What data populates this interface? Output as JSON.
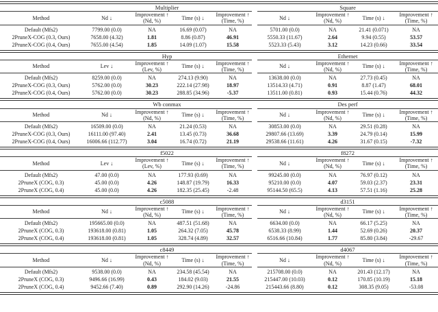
{
  "colors": {
    "background": "#ffffff",
    "text": "#1b1b1b",
    "rule": "#2e2e2e"
  },
  "bands": [
    {
      "method_header": "Method",
      "methods": [
        "Default (Mfs2)",
        "2PruneX-COG (0.3, Ours)",
        "2PruneX-COG (0.4, Ours)"
      ],
      "tables": [
        {
          "title": "Multiplier",
          "headers": [
            "Nd ↓",
            "Improvement ↑\n(Nd, %)",
            "Time (s) ↓",
            "Improvement ↑\n(Time, %)"
          ],
          "rows": [
            [
              {
                "t": "7799.00 (0.0)"
              },
              {
                "t": "NA"
              },
              {
                "t": "16.69 (0.07)"
              },
              {
                "t": "NA"
              }
            ],
            [
              {
                "t": "7658.00 (4.32)"
              },
              {
                "t": "1.81",
                "b": true
              },
              {
                "t": "8.86 (0.87)"
              },
              {
                "t": "46.91",
                "b": true
              }
            ],
            [
              {
                "t": "7655.00 (4.54)"
              },
              {
                "t": "1.85",
                "b": true
              },
              {
                "t": "14.09 (1.07)"
              },
              {
                "t": "15.58",
                "b": true
              }
            ]
          ]
        },
        {
          "title": "Square",
          "headers": [
            "Nd ↓",
            "Improvement ↑\n(Nd, %)",
            "Time (s) ↓",
            "Improvement ↑\n(Time, %)"
          ],
          "rows": [
            [
              {
                "t": "5701.00 (0.0)"
              },
              {
                "t": "NA"
              },
              {
                "t": "21.41 (0.071)"
              },
              {
                "t": "NA"
              }
            ],
            [
              {
                "t": "5550.33 (11.67)"
              },
              {
                "t": "2.64",
                "b": true
              },
              {
                "t": "9.94 (0.55)"
              },
              {
                "t": "53.57",
                "b": true
              }
            ],
            [
              {
                "t": "5523.33 (5.43)"
              },
              {
                "t": "3.12",
                "b": true
              },
              {
                "t": "14.23 (0.66)"
              },
              {
                "t": "33.54",
                "b": true
              }
            ]
          ]
        }
      ]
    },
    {
      "method_header": "Method",
      "methods": [
        "Default (Mfs2)",
        "2PruneX-COG (0.3, Ours)",
        "2PruneX-COG (0.4, Ours)"
      ],
      "tables": [
        {
          "title": "Hyp",
          "headers": [
            "Lev ↓",
            "Improvement ↑\n(Lev, %)",
            "Time (s) ↓",
            "Improvement ↑\n(Time, %)"
          ],
          "rows": [
            [
              {
                "t": "8259.00 (0.0)"
              },
              {
                "t": "NA"
              },
              {
                "t": "274.13 (9.90)"
              },
              {
                "t": "NA"
              }
            ],
            [
              {
                "t": "5762.00 (0.0)"
              },
              {
                "t": "30.23",
                "b": true
              },
              {
                "t": "222.14 (27.98)"
              },
              {
                "t": "18.97",
                "b": true
              }
            ],
            [
              {
                "t": "5762.00 (0.0)"
              },
              {
                "t": "30.23",
                "b": true
              },
              {
                "t": "288.85 (34.96)"
              },
              {
                "t": "-5.37",
                "b": true
              }
            ]
          ]
        },
        {
          "title": "Ethernet",
          "headers": [
            "Nd ↓",
            "Improvement ↑\n(Nd, %)",
            "Time (s) ↓",
            "Improvement ↑\n(Time, %)"
          ],
          "rows": [
            [
              {
                "t": "13638.00 (0.0)"
              },
              {
                "t": "NA"
              },
              {
                "t": "27.73 (0.45)"
              },
              {
                "t": "NA"
              }
            ],
            [
              {
                "t": "13514.33 (4.71)"
              },
              {
                "t": "0.91",
                "b": true
              },
              {
                "t": "8.87 (1.47)"
              },
              {
                "t": "68.01",
                "b": true
              }
            ],
            [
              {
                "t": "13511.00 (0.81)"
              },
              {
                "t": "0.93",
                "b": true
              },
              {
                "t": "15.44 (0.76)"
              },
              {
                "t": "44.32",
                "b": true
              }
            ]
          ]
        }
      ]
    },
    {
      "method_header": "Method",
      "methods": [
        "Default (Mfs2)",
        "2PruneX-COG (0.3, Ours)",
        "2PruneX-COG (0.4, Ours)"
      ],
      "tables": [
        {
          "title": "Wb conmax",
          "headers": [
            "Nd ↓",
            "Improvement ↑\n(Nd, %)",
            "Time (s) ↓",
            "Improvement ↑\n(Time, %)"
          ],
          "rows": [
            [
              {
                "t": "16509.00 (0.0)"
              },
              {
                "t": "NA"
              },
              {
                "t": "21.24 (0.53)"
              },
              {
                "t": "NA"
              }
            ],
            [
              {
                "t": "16111.00 (97.40)"
              },
              {
                "t": "2.41",
                "b": true
              },
              {
                "t": "13.45 (0.73)"
              },
              {
                "t": "36.68",
                "b": true
              }
            ],
            [
              {
                "t": "16006.66 (112.77)"
              },
              {
                "t": "3.04",
                "b": true
              },
              {
                "t": "16.74 (0.72)"
              },
              {
                "t": "21.19",
                "b": true
              }
            ]
          ]
        },
        {
          "title": "Des perf",
          "headers": [
            "Nd ↓",
            "Improvement ↑\n(Nd, %)",
            "Time (s) ↓",
            "Improvement ↑\n(Time, %)"
          ],
          "rows": [
            [
              {
                "t": "30853.00 (0.0)"
              },
              {
                "t": "NA"
              },
              {
                "t": "29.51 (0.28)"
              },
              {
                "t": "NA"
              }
            ],
            [
              {
                "t": "29807.66 (13.69)"
              },
              {
                "t": "3.39",
                "b": true
              },
              {
                "t": "24.79 (0.14)"
              },
              {
                "t": "15.99",
                "b": true
              }
            ],
            [
              {
                "t": "29538.66 (11.61)"
              },
              {
                "t": "4.26",
                "b": true
              },
              {
                "t": "31.67 (0.15)"
              },
              {
                "t": "-7.32",
                "b": true
              }
            ]
          ]
        }
      ]
    },
    {
      "method_header": "Method",
      "methods": [
        "Default (Mfs2)",
        "2PruneX (COG, 0.3)",
        "2PruneX (COG, 0.4)"
      ],
      "tables": [
        {
          "title": "f5022",
          "headers": [
            "Lev ↓",
            "Improvement ↑\n(Lev, %)",
            "Time (s) ↓",
            "Improvement ↑\n(Time, %)"
          ],
          "rows": [
            [
              {
                "t": "47.00 (0.0)"
              },
              {
                "t": "NA"
              },
              {
                "t": "177.93 (0.69)"
              },
              {
                "t": "NA"
              }
            ],
            [
              {
                "t": "45.00 (0.0)"
              },
              {
                "t": "4.26",
                "b": true
              },
              {
                "t": "148.87 (19.79)"
              },
              {
                "t": "16.33",
                "b": true
              }
            ],
            [
              {
                "t": "45.00 (0.0)"
              },
              {
                "t": "4.26",
                "b": true
              },
              {
                "t": "182.35 (25.45)"
              },
              {
                "t": "-2.48"
              }
            ]
          ]
        },
        {
          "title": "f8272",
          "headers": [
            "Nd ↓",
            "Improvement ↑\n(Nd, %)",
            "Time (s) ↓",
            "Improvement ↑\n(Time, %)"
          ],
          "rows": [
            [
              {
                "t": "99245.00 (0.0)"
              },
              {
                "t": "NA"
              },
              {
                "t": "76.97 (0.12)"
              },
              {
                "t": "NA"
              }
            ],
            [
              {
                "t": "95210.00 (0.0)"
              },
              {
                "t": "4.07",
                "b": true
              },
              {
                "t": "59.03 (2.37)"
              },
              {
                "t": "23.31",
                "b": true
              }
            ],
            [
              {
                "t": "95144.50 (65.5)"
              },
              {
                "t": "4.13",
                "b": true
              },
              {
                "t": "57.51 (1.16)"
              },
              {
                "t": "25.28",
                "b": true
              }
            ]
          ]
        }
      ]
    },
    {
      "method_header": "Method",
      "methods": [
        "Default (Mfs2)",
        "2PruneX (COG, 0.3)",
        "2PruneX (COG, 0.4)"
      ],
      "tables": [
        {
          "title": "c5088",
          "headers": [
            "Nd ↓",
            "Improvement ↑\n(Nd, %)",
            "Time (s) ↓",
            "Improvement ↑\n(Time, %)"
          ],
          "rows": [
            [
              {
                "t": "195665.00 (0.0)"
              },
              {
                "t": "NA"
              },
              {
                "t": "487.51 (51.68)"
              },
              {
                "t": "NA"
              }
            ],
            [
              {
                "t": "193618.00 (0.81)"
              },
              {
                "t": "1.05",
                "b": true
              },
              {
                "t": "264.32 (7.05)"
              },
              {
                "t": "45.78",
                "b": true
              }
            ],
            [
              {
                "t": "193618.00 (0.81)"
              },
              {
                "t": "1.05",
                "b": true
              },
              {
                "t": "328.74 (4.89)"
              },
              {
                "t": "32.57",
                "b": true
              }
            ]
          ]
        },
        {
          "title": "d3151",
          "headers": [
            "Nd ↓",
            "Improvement ↑\n(Nd, %)",
            "Time (s) ↓",
            "Improvement ↑\n(Time, %)"
          ],
          "rows": [
            [
              {
                "t": "6634.00 (0.0)"
              },
              {
                "t": "NA"
              },
              {
                "t": "66.17 (5.25)"
              },
              {
                "t": "NA"
              }
            ],
            [
              {
                "t": "6538.33 (8.99)"
              },
              {
                "t": "1.44",
                "b": true
              },
              {
                "t": "52.69 (0.26)"
              },
              {
                "t": "20.37",
                "b": true
              }
            ],
            [
              {
                "t": "6516.66 (10.84)"
              },
              {
                "t": "1.77",
                "b": true
              },
              {
                "t": "85.80 (3.84)"
              },
              {
                "t": "-29.67"
              }
            ]
          ]
        }
      ]
    },
    {
      "method_header": "Method",
      "methods": [
        "Default (Mfs2)",
        "2PruneX (COG, 0.3)",
        "2PruneX (COG, 0.4)"
      ],
      "tables": [
        {
          "title": "c8449",
          "headers": [
            "Nd ↓",
            "Improvement ↑\n(Nd, %)",
            "Time (s) ↓",
            "Improvement ↑\n(Time, %)"
          ],
          "rows": [
            [
              {
                "t": "9538.00 (0.0)"
              },
              {
                "t": "NA"
              },
              {
                "t": "234.58 (45.54)"
              },
              {
                "t": "NA"
              }
            ],
            [
              {
                "t": "9496.66 (16.99)"
              },
              {
                "t": "0.43",
                "b": true
              },
              {
                "t": "184.02 (9.03)"
              },
              {
                "t": "21.55",
                "b": true
              }
            ],
            [
              {
                "t": "9452.66 (7.40)"
              },
              {
                "t": "0.89",
                "b": true
              },
              {
                "t": "292.90 (14.26)"
              },
              {
                "t": "-24.86"
              }
            ]
          ]
        },
        {
          "title": "d4067",
          "headers": [
            "Nd ↓",
            "Improvement ↑\n(Nd, %)",
            "Time (s) ↓",
            "Improvement ↑\n(Time, %)"
          ],
          "rows": [
            [
              {
                "t": "215708.00 (0.0)"
              },
              {
                "t": "NA"
              },
              {
                "t": "201.43 (12.17)"
              },
              {
                "t": "NA"
              }
            ],
            [
              {
                "t": "215447.00 (10.03)"
              },
              {
                "t": "0.12",
                "b": true
              },
              {
                "t": "170.85 (10.19)"
              },
              {
                "t": "15.18",
                "b": true
              }
            ],
            [
              {
                "t": "215443.66 (8.80)"
              },
              {
                "t": "0.12",
                "b": true
              },
              {
                "t": "308.35 (9.05)"
              },
              {
                "t": "-53.08"
              }
            ]
          ]
        }
      ]
    }
  ]
}
